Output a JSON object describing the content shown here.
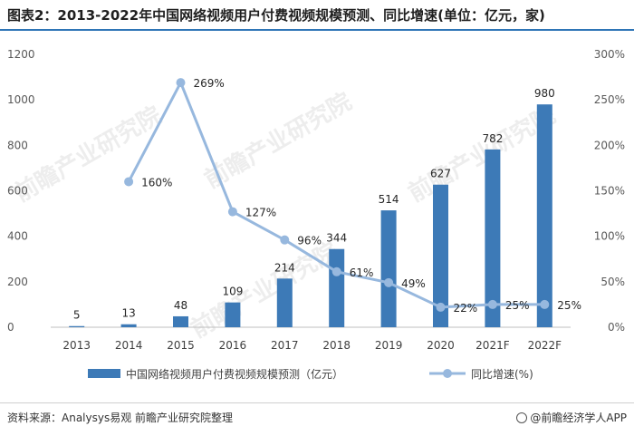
{
  "title": "图表2：2013-2022年中国网络视频用户付费视频规模预测、同比增速(单位：亿元，家)",
  "source": "资料来源：Analysys易观 前瞻产业研究院整理",
  "brand": "@前瞻经济学人APP",
  "watermark": "前瞻产业研究院",
  "colors": {
    "bar": "#3d7ab7",
    "line": "#97b8de",
    "title_rule": "#2e75b6"
  },
  "chart_data": {
    "type": "bar",
    "categories": [
      "2013",
      "2014",
      "2015",
      "2016",
      "2017",
      "2018",
      "2019",
      "2020",
      "2021F",
      "2022F"
    ],
    "series": [
      {
        "name": "中国网络视频用户付费视频规模预测（亿元）",
        "type": "bar",
        "axis": "left",
        "values": [
          5,
          13,
          48,
          109,
          214,
          344,
          514,
          627,
          782,
          980
        ],
        "labels": [
          "5",
          "13",
          "48",
          "109",
          "214",
          "344",
          "514",
          "627",
          "782",
          "980"
        ]
      },
      {
        "name": "同比增速(%)",
        "type": "line",
        "axis": "right",
        "values": [
          null,
          160,
          269,
          127,
          96,
          61,
          49,
          22,
          25,
          25
        ],
        "labels": [
          "",
          "160%",
          "269%",
          "127%",
          "96%",
          "61%",
          "49%",
          "22%",
          "25%",
          "25%"
        ]
      }
    ],
    "y_left": {
      "min": 0,
      "max": 1200,
      "ticks": [
        "0",
        "200",
        "400",
        "600",
        "800",
        "1000",
        "1200"
      ]
    },
    "y_right": {
      "min": 0,
      "max": 300,
      "ticks": [
        "0%",
        "50%",
        "100%",
        "150%",
        "200%",
        "250%",
        "300%"
      ]
    },
    "grid": false,
    "legend_position": "bottom"
  }
}
